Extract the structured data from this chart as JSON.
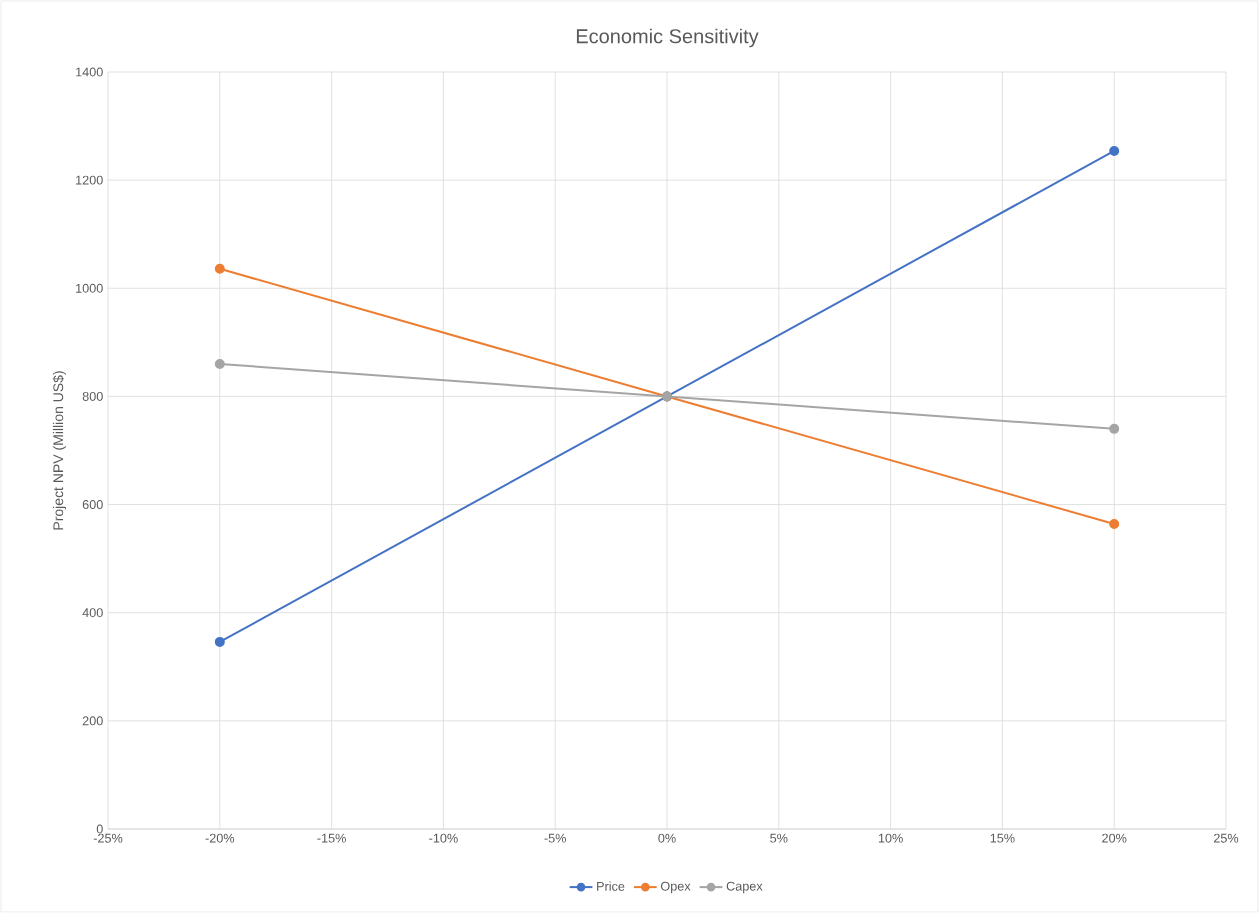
{
  "chart_data": {
    "type": "line",
    "title": "Economic Sensitivity",
    "ylabel": "Project NPV (Million US$)",
    "x": [
      -20,
      0,
      20
    ],
    "series": [
      {
        "name": "Price",
        "color": "#4472c4",
        "values": [
          346,
          800,
          1254
        ]
      },
      {
        "name": "Opex",
        "color": "#ed7d31",
        "values": [
          1036,
          800,
          564
        ]
      },
      {
        "name": "Capex",
        "color": "#a5a5a5",
        "values": [
          860,
          800,
          740
        ]
      }
    ],
    "xlim": [
      -25,
      25
    ],
    "xticks": [
      {
        "value": -25,
        "label": "-25%"
      },
      {
        "value": -20,
        "label": "-20%"
      },
      {
        "value": -15,
        "label": "-15%"
      },
      {
        "value": -10,
        "label": "-10%"
      },
      {
        "value": -5,
        "label": "-5%"
      },
      {
        "value": 0,
        "label": "0%"
      },
      {
        "value": 5,
        "label": "5%"
      },
      {
        "value": 10,
        "label": "10%"
      },
      {
        "value": 15,
        "label": "15%"
      },
      {
        "value": 20,
        "label": "20%"
      },
      {
        "value": 25,
        "label": "25%"
      }
    ],
    "ylim": [
      0,
      1400
    ],
    "yticks": [
      0,
      200,
      400,
      600,
      800,
      1000,
      1200,
      1400
    ],
    "grid": true,
    "legend": "bottom",
    "marker": "circle",
    "line_style": "solid"
  }
}
